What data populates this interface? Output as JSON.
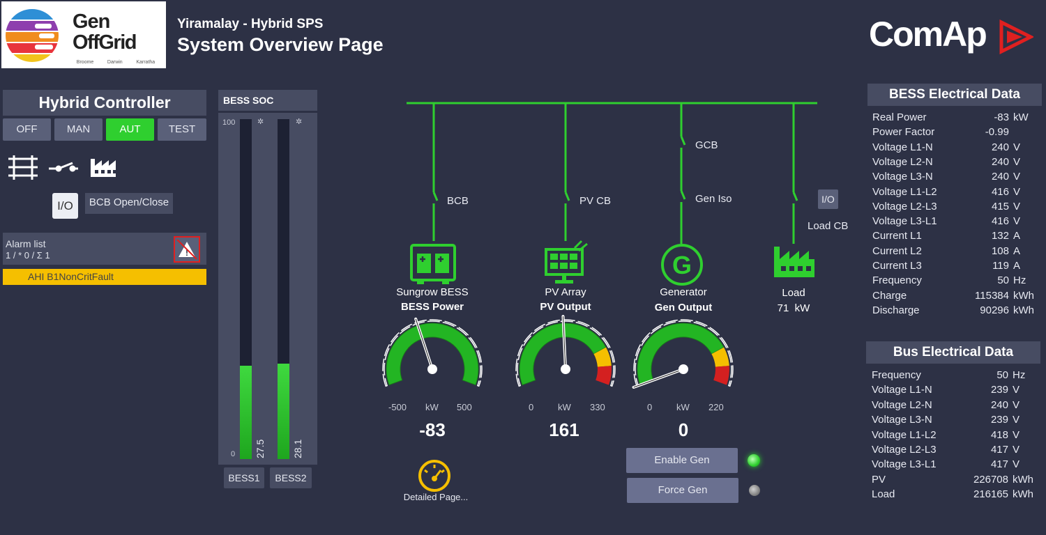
{
  "header": {
    "logo_line1": "Gen",
    "logo_line2": "OffGrid",
    "logo_locations": [
      "Broome",
      "Darwin",
      "Karratha"
    ],
    "site_title": "Yiramalay - Hybrid SPS",
    "page_title": "System Overview Page",
    "brand": "ComAp"
  },
  "hybrid_controller": {
    "title": "Hybrid Controller",
    "modes": [
      "OFF",
      "MAN",
      "AUT",
      "TEST"
    ],
    "selected_mode": "AUT",
    "io_button": "I/O",
    "bcb_label": "BCB Open/Close"
  },
  "alarm": {
    "title": "Alarm list",
    "counts": "1 / * 0 / Σ 1",
    "items": [
      "AHI B1NonCritFault"
    ]
  },
  "bess_soc": {
    "title": "BESS SOC",
    "scale_max": "100",
    "scale_min": "0",
    "bars": [
      {
        "label": "BESS1",
        "value": 27.5,
        "value_text": "27.5"
      },
      {
        "label": "BESS2",
        "value": 28.1,
        "value_text": "28.1"
      }
    ]
  },
  "diagram": {
    "breakers": {
      "bcb": "BCB",
      "pvcb": "PV CB",
      "gcb": "GCB",
      "geniso": "Gen Iso",
      "loadcb": "Load CB"
    },
    "load_io": "I/O",
    "bess": {
      "name": "Sungrow BESS",
      "measure": "BESS Power",
      "min": "-500",
      "max": "500",
      "unit": "kW",
      "value": -83,
      "value_text": "-83"
    },
    "pv": {
      "name": "PV Array",
      "measure": "PV Output",
      "min": "0",
      "max": "330",
      "unit": "kW",
      "value": 161,
      "value_text": "161"
    },
    "gen": {
      "name": "Generator",
      "measure": "Gen Output",
      "min": "0",
      "max": "220",
      "unit": "kW",
      "value": 0,
      "value_text": "0"
    },
    "load": {
      "name": "Load",
      "value_text": "71  kW"
    },
    "detailed_page": "Detailed Page...",
    "enable_gen": "Enable Gen",
    "force_gen": "Force Gen"
  },
  "bess_data": {
    "title": "BESS Electrical Data",
    "rows": [
      {
        "name": "Real Power",
        "value": "-83",
        "unit": "kW"
      },
      {
        "name": "Power Factor",
        "value": "-0.99",
        "unit": ""
      },
      {
        "name": "Voltage L1-N",
        "value": "240",
        "unit": "V"
      },
      {
        "name": "Voltage L2-N",
        "value": "240",
        "unit": "V"
      },
      {
        "name": "Voltage L3-N",
        "value": "240",
        "unit": "V"
      },
      {
        "name": "Voltage L1-L2",
        "value": "416",
        "unit": "V"
      },
      {
        "name": "Voltage L2-L3",
        "value": "415",
        "unit": "V"
      },
      {
        "name": "Voltage L3-L1",
        "value": "416",
        "unit": "V"
      },
      {
        "name": "Current L1",
        "value": "132",
        "unit": "A"
      },
      {
        "name": "Current L2",
        "value": "108",
        "unit": "A"
      },
      {
        "name": "Current L3",
        "value": "119",
        "unit": "A"
      },
      {
        "name": "Frequency",
        "value": "50",
        "unit": "Hz"
      },
      {
        "name": "Charge",
        "value": "115384",
        "unit": "kWh"
      },
      {
        "name": "Discharge",
        "value": "90296",
        "unit": "kWh"
      }
    ]
  },
  "bus_data": {
    "title": "Bus Electrical Data",
    "rows": [
      {
        "name": "Frequency",
        "value": "50",
        "unit": "Hz"
      },
      {
        "name": "Voltage L1-N",
        "value": "239",
        "unit": "V"
      },
      {
        "name": "Voltage L2-N",
        "value": "240",
        "unit": "V"
      },
      {
        "name": "Voltage L3-N",
        "value": "239",
        "unit": "V"
      },
      {
        "name": "Voltage L1-L2",
        "value": "418",
        "unit": "V"
      },
      {
        "name": "Voltage L2-L3",
        "value": "417",
        "unit": "V"
      },
      {
        "name": "Voltage L3-L1",
        "value": "417",
        "unit": "V"
      },
      {
        "name": "PV",
        "value": "226708",
        "unit": "kWh"
      },
      {
        "name": "Load",
        "value": "216165",
        "unit": "kWh"
      }
    ]
  },
  "colors": {
    "accent_green": "#2fcf2f",
    "alarm_yellow": "#f5bf00",
    "background": "#2d3145"
  }
}
